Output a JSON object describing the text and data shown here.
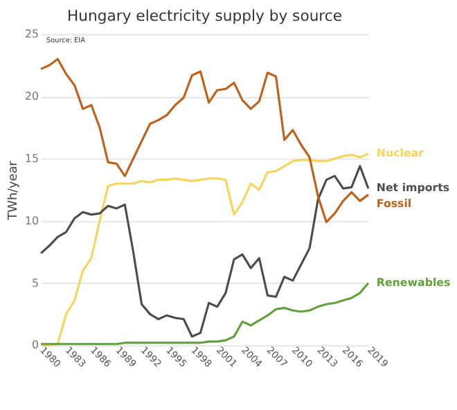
{
  "chart_data": {
    "type": "line",
    "title": "Hungary electricity supply by source",
    "ylabel": "TWh/year",
    "annotations": [
      "Source: EIA"
    ],
    "x": [
      1980,
      1981,
      1982,
      1983,
      1984,
      1985,
      1986,
      1987,
      1988,
      1989,
      1990,
      1991,
      1992,
      1993,
      1994,
      1995,
      1996,
      1997,
      1998,
      1999,
      2000,
      2001,
      2002,
      2003,
      2004,
      2005,
      2006,
      2007,
      2008,
      2009,
      2010,
      2011,
      2012,
      2013,
      2014,
      2015,
      2016,
      2017,
      2018,
      2019
    ],
    "series": [
      {
        "name": "Nuclear",
        "color": "#f5d55c",
        "values": [
          0,
          0,
          0.1,
          2.5,
          3.6,
          6.0,
          7.0,
          10.0,
          12.8,
          13.0,
          13.0,
          13.0,
          13.2,
          13.1,
          13.3,
          13.3,
          13.4,
          13.3,
          13.2,
          13.3,
          13.4,
          13.4,
          13.3,
          10.5,
          11.5,
          13.0,
          12.5,
          13.9,
          14.0,
          14.4,
          14.8,
          14.9,
          14.9,
          14.8,
          14.8,
          15.0,
          15.2,
          15.3,
          15.1,
          15.4
        ]
      },
      {
        "name": "Net imports",
        "color": "#4d4d4d",
        "values": [
          7.4,
          8.0,
          8.7,
          9.1,
          10.2,
          10.7,
          10.5,
          10.6,
          11.2,
          11.0,
          11.3,
          7.5,
          3.3,
          2.5,
          2.1,
          2.4,
          2.2,
          2.1,
          0.7,
          1.0,
          3.4,
          3.1,
          4.2,
          6.9,
          7.3,
          6.2,
          7.0,
          4.0,
          3.9,
          5.5,
          5.2,
          6.5,
          7.8,
          11.7,
          13.3,
          13.6,
          12.6,
          12.7,
          14.4,
          12.6
        ]
      },
      {
        "name": "Fossil",
        "color": "#c0611a",
        "values": [
          22.2,
          22.5,
          23.0,
          21.8,
          20.9,
          19.0,
          19.3,
          17.5,
          14.7,
          14.6,
          13.6,
          15.0,
          16.4,
          17.8,
          18.1,
          18.5,
          19.3,
          19.9,
          21.7,
          22.0,
          19.5,
          20.5,
          20.6,
          21.1,
          19.7,
          19.0,
          19.6,
          21.9,
          21.6,
          16.5,
          17.3,
          16.1,
          15.1,
          12.0,
          9.9,
          10.6,
          11.6,
          12.3,
          11.6,
          12.1
        ]
      },
      {
        "name": "Renewables",
        "color": "#62a03e",
        "values": [
          0.1,
          0.1,
          0.1,
          0.1,
          0.1,
          0.1,
          0.1,
          0.1,
          0.1,
          0.1,
          0.2,
          0.2,
          0.2,
          0.2,
          0.2,
          0.2,
          0.2,
          0.2,
          0.2,
          0.2,
          0.3,
          0.3,
          0.4,
          0.7,
          1.9,
          1.6,
          2.0,
          2.4,
          2.9,
          3.0,
          2.8,
          2.7,
          2.8,
          3.1,
          3.3,
          3.4,
          3.6,
          3.8,
          4.2,
          5.0
        ]
      }
    ],
    "xlim": [
      1980,
      2019
    ],
    "xticks": [
      1980,
      1983,
      1986,
      1989,
      1992,
      1995,
      1998,
      2001,
      2004,
      2007,
      2010,
      2013,
      2016,
      2019
    ],
    "ylim": [
      0,
      25
    ],
    "yticks": [
      0,
      5,
      10,
      15,
      20,
      25
    ],
    "grid": "y",
    "legend": false,
    "marker": "none",
    "line_style": "solid"
  }
}
